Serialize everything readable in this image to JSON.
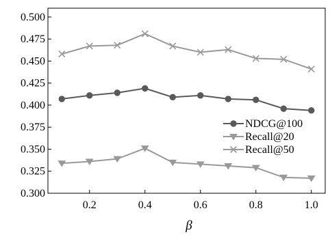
{
  "chart_data": {
    "type": "line",
    "xlabel": "β",
    "ylabel": "",
    "xlim": [
      0.05,
      1.05
    ],
    "ylim": [
      0.3,
      0.51
    ],
    "x": [
      0.1,
      0.2,
      0.3,
      0.4,
      0.5,
      0.6,
      0.7,
      0.8,
      0.9,
      1.0
    ],
    "x_ticks": [
      "0.2",
      "0.4",
      "0.6",
      "0.8",
      "1.0"
    ],
    "y_ticks": [
      "0.300",
      "0.325",
      "0.350",
      "0.375",
      "0.400",
      "0.425",
      "0.450",
      "0.475",
      "0.500"
    ],
    "grid": false,
    "legend_position": "right",
    "series": [
      {
        "name": "NDCG@100",
        "marker": "circle",
        "color": "#595959",
        "values": [
          0.407,
          0.411,
          0.414,
          0.419,
          0.409,
          0.411,
          0.407,
          0.406,
          0.396,
          0.394
        ]
      },
      {
        "name": "Recall@20",
        "marker": "triangle-down",
        "color": "#999999",
        "values": [
          0.334,
          0.336,
          0.339,
          0.351,
          0.335,
          0.333,
          0.331,
          0.329,
          0.318,
          0.317
        ]
      },
      {
        "name": "Recall@50",
        "marker": "x",
        "color": "#999999",
        "values": [
          0.458,
          0.467,
          0.468,
          0.481,
          0.467,
          0.46,
          0.463,
          0.453,
          0.452,
          0.441
        ]
      }
    ]
  }
}
